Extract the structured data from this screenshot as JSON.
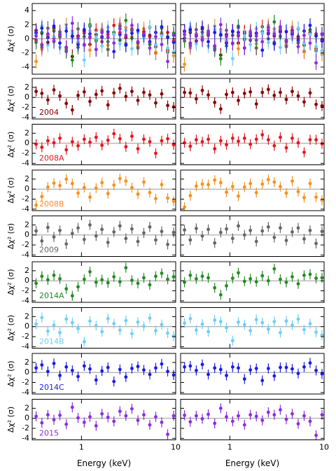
{
  "chart_data": [
    {
      "type": "scatter",
      "xlabel": "Energy (keV)",
      "ylabel": "Δχ² (σ)",
      "xscale": "log",
      "xlim": [
        0.3,
        10
      ],
      "xticks": [
        {
          "value": 1,
          "label": "1"
        },
        {
          "value": 10,
          "label": "10"
        }
      ],
      "x": [
        0.33,
        0.38,
        0.44,
        0.51,
        0.59,
        0.69,
        0.8,
        0.92,
        1.07,
        1.23,
        1.43,
        1.65,
        1.91,
        2.21,
        2.56,
        2.96,
        3.43,
        3.97,
        4.59,
        5.31,
        6.14,
        7.1,
        8.22,
        9.5
      ],
      "yerr": 1,
      "top_ylim": [
        -5,
        5
      ],
      "top_yticks": [
        -4,
        -2,
        0,
        2,
        4
      ],
      "ylim": [
        -4.3,
        3.8
      ],
      "yticks": [
        -4,
        -2,
        0,
        2
      ],
      "series": [
        {
          "name": "2004",
          "color": "#8b0000",
          "values": [
            1.2,
            0.8,
            -0.5,
            1.5,
            0.3,
            -1.2,
            -2.5,
            0.4,
            1.1,
            -0.8,
            0.6,
            1.3,
            -1.5,
            0.9,
            1.8,
            0.2,
            1.2,
            -0.6,
            1.0,
            0.5,
            -1.1,
            0.7,
            -1.6,
            -1.9
          ]
        },
        {
          "name": "2008A",
          "color": "#e8141c",
          "values": [
            -0.2,
            -0.8,
            0.5,
            0.1,
            1.0,
            -1.3,
            0.3,
            -0.5,
            0.8,
            0.2,
            1.2,
            -0.4,
            0.6,
            1.9,
            0.9,
            -0.7,
            1.4,
            -1.1,
            0.8,
            0.3,
            -2.0,
            0.5,
            0.9,
            -0.3
          ]
        },
        {
          "name": "2008B",
          "color": "#f7901e",
          "values": [
            -3.2,
            -1.5,
            0.4,
            1.2,
            0.7,
            2.0,
            1.1,
            -0.8,
            0.3,
            -1.6,
            0.2,
            1.3,
            -0.9,
            0.8,
            2.1,
            1.6,
            0.3,
            -1.0,
            1.4,
            -0.7,
            -1.9,
            0.9,
            -1.8,
            -2.4
          ]
        },
        {
          "name": "2009",
          "color": "#666666",
          "values": [
            0.8,
            -1.2,
            1.5,
            -0.4,
            0.9,
            -1.8,
            0.3,
            1.4,
            -0.9,
            2.0,
            -0.2,
            1.1,
            -1.5,
            0.6,
            1.8,
            -0.7,
            1.2,
            -1.3,
            0.4,
            1.6,
            -1.0,
            0.7,
            -1.9,
            0.5
          ]
        },
        {
          "name": "2014A",
          "color": "#228b22",
          "values": [
            -0.5,
            0.9,
            0.2,
            1.1,
            0.4,
            -1.6,
            -3.0,
            -1.2,
            0.3,
            1.8,
            -0.3,
            0.2,
            -0.4,
            0.8,
            -0.2,
            2.6,
            0.1,
            -0.5,
            0.6,
            -0.8,
            0.9,
            1.5,
            0.3,
            0.8
          ]
        },
        {
          "name": "2014B",
          "color": "#6ecff6",
          "values": [
            0.5,
            1.8,
            -0.9,
            0.3,
            -1.2,
            1.5,
            0.8,
            -0.4,
            -3.0,
            1.1,
            0.2,
            -1.0,
            1.6,
            0.6,
            -0.7,
            1.2,
            -1.4,
            0.9,
            0.1,
            1.7,
            -0.8,
            0.4,
            -1.3,
            -1.9
          ]
        },
        {
          "name": "2014C",
          "color": "#1a1aee",
          "values": [
            0.9,
            1.5,
            0.2,
            1.8,
            -0.6,
            1.1,
            0.4,
            -0.8,
            1.3,
            0.7,
            -1.5,
            0.3,
            1.0,
            -1.8,
            0.6,
            -0.9,
            0.8,
            1.2,
            0.5,
            -0.4,
            0.9,
            1.7,
            0.2,
            -0.5
          ]
        },
        {
          "name": "2015",
          "color": "#8b2be2",
          "values": [
            0.4,
            -0.9,
            0.7,
            -0.3,
            0.6,
            -1.2,
            2.2,
            0.1,
            -0.8,
            0.3,
            -1.5,
            0.9,
            0.2,
            -0.6,
            1.4,
            0.5,
            1.9,
            -0.4,
            0.7,
            -1.3,
            0.3,
            -0.8,
            -3.2,
            0.5
          ]
        }
      ]
    },
    {
      "type": "scatter",
      "xlabel": "Energy (keV)",
      "xscale": "log",
      "xlim": [
        0.3,
        10
      ],
      "xticks": [
        {
          "value": 1,
          "label": "1"
        },
        {
          "value": 10,
          "label": "10"
        }
      ],
      "x": [
        0.33,
        0.38,
        0.44,
        0.51,
        0.59,
        0.69,
        0.8,
        0.92,
        1.07,
        1.23,
        1.43,
        1.65,
        1.91,
        2.21,
        2.56,
        2.96,
        3.43,
        3.97,
        4.59,
        5.31,
        6.14,
        7.1,
        8.22,
        9.5
      ],
      "yerr": 1,
      "top_ylim": [
        -5,
        5
      ],
      "top_yticks": [
        -4,
        -2,
        0,
        2,
        4
      ],
      "ylim": [
        -4.3,
        3.8
      ],
      "yticks": [
        -4,
        -2,
        0,
        2
      ],
      "series": [
        {
          "color": "#8b0000",
          "values": [
            1.0,
            0.9,
            -0.3,
            1.4,
            0.5,
            -1.0,
            -2.3,
            0.6,
            1.0,
            -0.6,
            0.8,
            1.1,
            -1.3,
            1.0,
            1.6,
            0.4,
            1.0,
            -0.4,
            1.2,
            0.3,
            -0.9,
            0.9,
            -1.4,
            -1.7
          ]
        },
        {
          "color": "#e8141c",
          "values": [
            0.1,
            -0.6,
            0.7,
            0.3,
            0.8,
            -1.1,
            0.5,
            -0.3,
            1.0,
            0.4,
            1.0,
            -0.2,
            0.8,
            1.7,
            0.7,
            -0.5,
            1.2,
            -0.9,
            1.0,
            0.1,
            -1.8,
            0.7,
            0.7,
            -0.1
          ]
        },
        {
          "color": "#f7901e",
          "values": [
            -3.6,
            -1.3,
            0.6,
            1.0,
            0.9,
            1.8,
            1.3,
            -0.6,
            0.5,
            -1.4,
            0.4,
            1.1,
            -0.7,
            1.0,
            1.9,
            1.4,
            0.5,
            -0.8,
            1.6,
            -0.5,
            -1.7,
            1.1,
            -1.6,
            -2.2
          ]
        },
        {
          "color": "#666666",
          "values": [
            1.0,
            -1.0,
            1.3,
            -0.2,
            1.1,
            -1.6,
            0.5,
            1.2,
            -0.7,
            1.8,
            0.0,
            0.9,
            -1.3,
            0.8,
            1.6,
            -0.5,
            1.4,
            -1.1,
            0.6,
            1.4,
            -0.8,
            0.9,
            -1.7,
            0.7
          ]
        },
        {
          "color": "#228b22",
          "values": [
            -0.3,
            1.1,
            0.4,
            0.9,
            0.6,
            -1.4,
            -2.8,
            -1.0,
            0.5,
            1.6,
            -0.1,
            0.4,
            -0.2,
            1.0,
            0.0,
            2.4,
            0.3,
            -0.3,
            0.8,
            -0.6,
            1.1,
            1.3,
            0.5,
            0.6
          ]
        },
        {
          "color": "#6ecff6",
          "values": [
            0.7,
            1.6,
            -0.7,
            0.5,
            -1.0,
            1.3,
            1.0,
            -0.2,
            -2.8,
            0.9,
            0.4,
            -0.8,
            1.4,
            0.8,
            -0.5,
            1.0,
            -1.2,
            1.1,
            0.3,
            1.5,
            -0.6,
            0.6,
            -1.1,
            -1.7
          ]
        },
        {
          "color": "#1a1aee",
          "values": [
            1.1,
            1.3,
            0.4,
            1.6,
            -0.4,
            0.9,
            0.6,
            -0.6,
            1.1,
            0.9,
            -1.3,
            0.5,
            0.8,
            -1.6,
            0.8,
            -0.7,
            1.0,
            1.0,
            0.7,
            -0.2,
            1.1,
            1.9,
            0.4,
            -0.3
          ]
        },
        {
          "color": "#8b2be2",
          "values": [
            0.6,
            -0.7,
            0.5,
            -0.1,
            0.8,
            -1.0,
            2.0,
            0.3,
            -0.6,
            0.5,
            -1.3,
            0.7,
            0.4,
            -0.4,
            1.2,
            0.7,
            1.7,
            -0.2,
            0.9,
            -1.1,
            0.5,
            -0.6,
            -3.4,
            0.7
          ]
        }
      ]
    }
  ]
}
